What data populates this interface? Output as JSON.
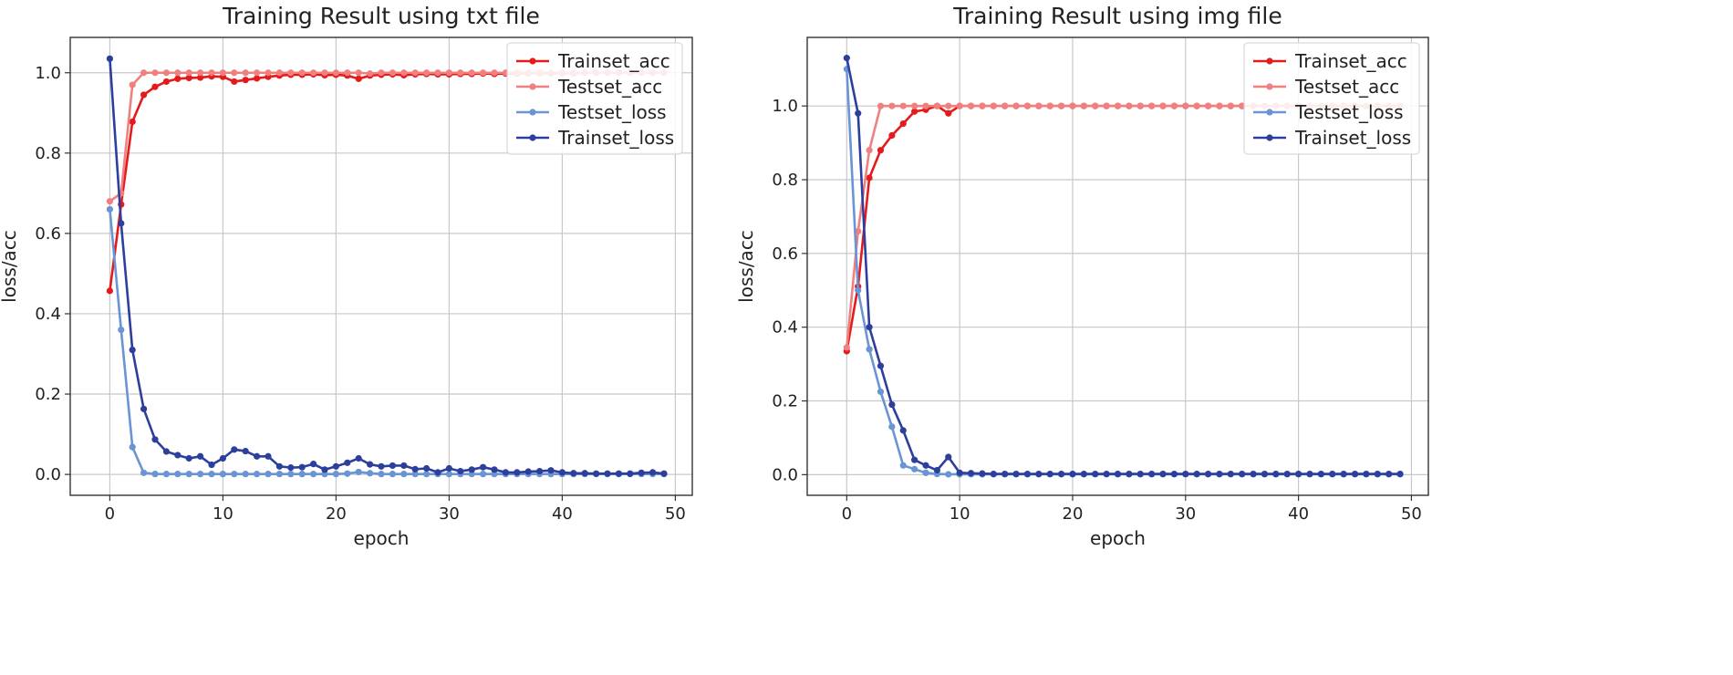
{
  "colors": {
    "Trainset_acc": "#e41a1c",
    "Testset_acc": "#f08080",
    "Testset_loss": "#6a94d4",
    "Trainset_loss": "#2c3f9c",
    "grid": "#c8c8c8",
    "axis": "#333333"
  },
  "chart_data": [
    {
      "type": "line",
      "title": "Training Result using txt file",
      "xlabel": "epoch",
      "ylabel": "loss/acc",
      "xlim": [
        -3.5,
        51.5
      ],
      "ylim": [
        -0.052,
        1.088
      ],
      "xticks": [
        0,
        10,
        20,
        30,
        40,
        50
      ],
      "yticks": [
        0.0,
        0.2,
        0.4,
        0.6,
        0.8,
        1.0
      ],
      "xtick_labels": [
        "0",
        "10",
        "20",
        "30",
        "40",
        "50"
      ],
      "ytick_labels": [
        "0.0",
        "0.2",
        "0.4",
        "0.6",
        "0.8",
        "1.0"
      ],
      "grid": true,
      "legend_position": "top-right",
      "series": [
        {
          "name": "Trainset_acc",
          "values": [
            0.457,
            0.672,
            0.878,
            0.945,
            0.965,
            0.978,
            0.985,
            0.987,
            0.988,
            0.991,
            0.99,
            0.978,
            0.982,
            0.986,
            0.99,
            0.993,
            0.995,
            0.995,
            0.996,
            0.994,
            0.995,
            0.993,
            0.985,
            0.993,
            0.995,
            0.996,
            0.994,
            0.996,
            0.997,
            0.996,
            0.996,
            0.997,
            0.997,
            0.998,
            0.997,
            0.998,
            0.998,
            0.999,
            0.999,
            0.999,
            0.999,
            0.999,
            1.0,
            1.0,
            1.0,
            1.0,
            1.0,
            1.0,
            1.0,
            1.0
          ]
        },
        {
          "name": "Testset_acc",
          "values": [
            0.68,
            0.7,
            0.97,
            1.0,
            1.0,
            1.0,
            1.0,
            1.0,
            1.0,
            1.0,
            1.0,
            1.0,
            1.0,
            1.0,
            1.0,
            1.0,
            1.0,
            1.0,
            1.0,
            1.0,
            1.0,
            1.0,
            1.0,
            0.998,
            1.0,
            1.0,
            1.0,
            1.0,
            1.0,
            1.0,
            1.0,
            1.0,
            1.0,
            1.0,
            1.0,
            1.0,
            1.0,
            1.0,
            1.0,
            1.0,
            1.0,
            1.0,
            1.0,
            1.0,
            1.0,
            1.0,
            1.0,
            1.0,
            1.0,
            1.0
          ]
        },
        {
          "name": "Testset_loss",
          "values": [
            0.66,
            0.36,
            0.068,
            0.004,
            0.001,
            0.001,
            0.001,
            0.001,
            0.001,
            0.001,
            0.001,
            0.001,
            0.001,
            0.001,
            0.001,
            0.001,
            0.001,
            0.001,
            0.001,
            0.001,
            0.001,
            0.002,
            0.006,
            0.003,
            0.001,
            0.001,
            0.001,
            0.001,
            0.001,
            0.001,
            0.001,
            0.001,
            0.001,
            0.001,
            0.001,
            0.001,
            0.001,
            0.001,
            0.001,
            0.001,
            0.001,
            0.001,
            0.001,
            0.001,
            0.001,
            0.001,
            0.001,
            0.001,
            0.001,
            0.001
          ]
        },
        {
          "name": "Trainset_loss",
          "values": [
            1.035,
            0.625,
            0.31,
            0.163,
            0.087,
            0.057,
            0.048,
            0.04,
            0.045,
            0.024,
            0.04,
            0.062,
            0.058,
            0.045,
            0.045,
            0.02,
            0.017,
            0.018,
            0.026,
            0.012,
            0.02,
            0.029,
            0.04,
            0.025,
            0.02,
            0.022,
            0.022,
            0.013,
            0.015,
            0.005,
            0.015,
            0.008,
            0.012,
            0.018,
            0.012,
            0.005,
            0.005,
            0.007,
            0.008,
            0.01,
            0.005,
            0.003,
            0.003,
            0.002,
            0.002,
            0.002,
            0.002,
            0.004,
            0.005,
            0.002
          ]
        }
      ]
    },
    {
      "type": "line",
      "title": "Training Result using img file",
      "xlabel": "epoch",
      "ylabel": "loss/acc",
      "xlim": [
        -3.5,
        51.5
      ],
      "ylim": [
        -0.056,
        1.186
      ],
      "xticks": [
        0,
        10,
        20,
        30,
        40,
        50
      ],
      "yticks": [
        0.0,
        0.2,
        0.4,
        0.6,
        0.8,
        1.0
      ],
      "xtick_labels": [
        "0",
        "10",
        "20",
        "30",
        "40",
        "50"
      ],
      "ytick_labels": [
        "0.0",
        "0.2",
        "0.4",
        "0.6",
        "0.8",
        "1.0"
      ],
      "grid": true,
      "legend_position": "top-right",
      "series": [
        {
          "name": "Trainset_acc",
          "values": [
            0.335,
            0.51,
            0.805,
            0.88,
            0.92,
            0.952,
            0.985,
            0.99,
            1.0,
            0.98,
            1.0,
            1.0,
            1.0,
            1.0,
            1.0,
            1.0,
            1.0,
            1.0,
            1.0,
            1.0,
            1.0,
            1.0,
            1.0,
            1.0,
            1.0,
            1.0,
            1.0,
            1.0,
            1.0,
            1.0,
            1.0,
            1.0,
            1.0,
            1.0,
            1.0,
            1.0,
            1.0,
            1.0,
            1.0,
            1.0,
            1.0,
            1.0,
            1.0,
            1.0,
            1.0,
            1.0,
            1.0,
            1.0,
            1.0,
            1.0
          ]
        },
        {
          "name": "Testset_acc",
          "values": [
            0.345,
            0.66,
            0.88,
            1.0,
            1.0,
            1.0,
            1.0,
            1.0,
            1.0,
            1.0,
            1.0,
            1.0,
            1.0,
            1.0,
            1.0,
            1.0,
            1.0,
            1.0,
            1.0,
            1.0,
            1.0,
            1.0,
            1.0,
            1.0,
            1.0,
            1.0,
            1.0,
            1.0,
            1.0,
            1.0,
            1.0,
            1.0,
            1.0,
            1.0,
            1.0,
            1.0,
            1.0,
            1.0,
            1.0,
            1.0,
            1.0,
            1.0,
            1.0,
            1.0,
            1.0,
            1.0,
            1.0,
            1.0,
            1.0,
            1.0
          ]
        },
        {
          "name": "Testset_loss",
          "values": [
            1.1,
            0.5,
            0.34,
            0.225,
            0.13,
            0.025,
            0.015,
            0.005,
            0.002,
            0.001,
            0.001,
            0.001,
            0.001,
            0.001,
            0.001,
            0.001,
            0.001,
            0.001,
            0.001,
            0.001,
            0.001,
            0.001,
            0.001,
            0.001,
            0.001,
            0.001,
            0.001,
            0.001,
            0.001,
            0.001,
            0.001,
            0.001,
            0.001,
            0.001,
            0.001,
            0.001,
            0.001,
            0.001,
            0.001,
            0.001,
            0.001,
            0.001,
            0.001,
            0.001,
            0.001,
            0.001,
            0.001,
            0.001,
            0.001,
            0.001
          ]
        },
        {
          "name": "Trainset_loss",
          "values": [
            1.13,
            0.98,
            0.4,
            0.295,
            0.19,
            0.12,
            0.04,
            0.025,
            0.012,
            0.048,
            0.005,
            0.004,
            0.003,
            0.002,
            0.002,
            0.002,
            0.002,
            0.002,
            0.002,
            0.002,
            0.002,
            0.002,
            0.002,
            0.002,
            0.002,
            0.002,
            0.002,
            0.002,
            0.002,
            0.002,
            0.002,
            0.002,
            0.002,
            0.002,
            0.002,
            0.002,
            0.002,
            0.002,
            0.002,
            0.002,
            0.002,
            0.002,
            0.002,
            0.002,
            0.002,
            0.002,
            0.002,
            0.002,
            0.002,
            0.002
          ]
        }
      ]
    }
  ]
}
